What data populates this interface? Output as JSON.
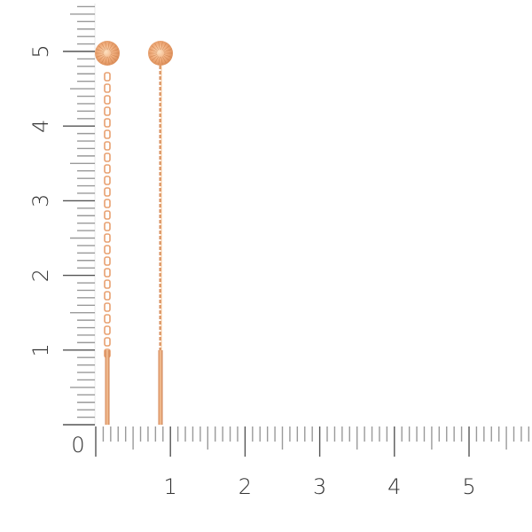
{
  "image": {
    "subject": "pair of gold threader earrings with disc tops",
    "metal_color": "#e8a070"
  },
  "ruler": {
    "unit": "cm",
    "vertical_labels": [
      "0",
      "1",
      "2",
      "3",
      "4",
      "5"
    ],
    "horizontal_labels": [
      "1",
      "2",
      "3",
      "4",
      "5"
    ],
    "tick_color": "#9a9a9a",
    "label_color": "#333333"
  },
  "earrings": [
    {
      "length_cm": 5.0,
      "chain": "cable"
    },
    {
      "length_cm": 5.0,
      "chain": "fine"
    }
  ]
}
